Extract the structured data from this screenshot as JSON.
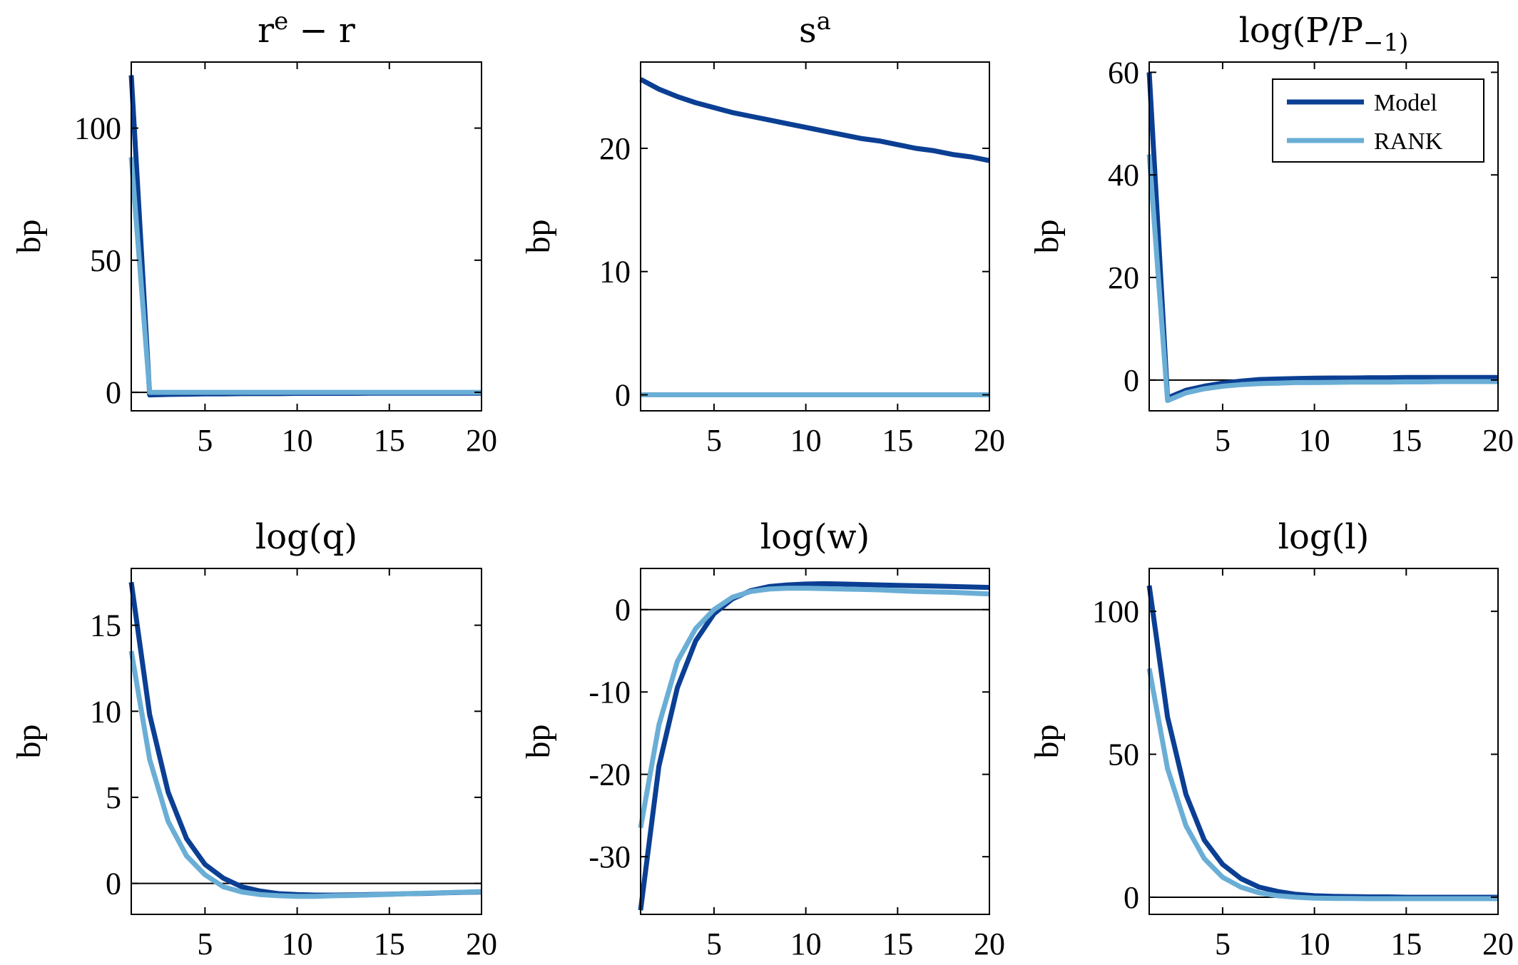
{
  "colors": {
    "model": "#0b3f93",
    "rank": "#6aaed6",
    "axis": "#000000",
    "zero": "#000000"
  },
  "legend": {
    "placement": "top-right-of-third-panel",
    "entries": [
      "Model",
      "RANK"
    ]
  },
  "chart_data": [
    {
      "type": "line",
      "title": "r^e − r",
      "ylabel": "bp",
      "xlim": [
        1,
        20
      ],
      "ylim": [
        -7,
        125
      ],
      "xticks": [
        5,
        10,
        15,
        20
      ],
      "yticks": [
        0,
        50,
        100
      ],
      "x": [
        1,
        2,
        3,
        4,
        5,
        6,
        7,
        8,
        9,
        10,
        11,
        12,
        13,
        14,
        15,
        16,
        17,
        18,
        19,
        20
      ],
      "series": [
        {
          "name": "Model",
          "values": [
            120,
            -1,
            -0.8,
            -0.7,
            -0.6,
            -0.6,
            -0.5,
            -0.5,
            -0.5,
            -0.4,
            -0.4,
            -0.4,
            -0.4,
            -0.3,
            -0.3,
            -0.3,
            -0.3,
            -0.3,
            -0.3,
            -0.3
          ]
        },
        {
          "name": "RANK",
          "values": [
            89,
            0,
            0,
            0,
            0,
            0,
            0,
            0,
            0,
            0,
            0,
            0,
            0,
            0,
            0,
            0,
            0,
            0,
            0,
            0
          ]
        }
      ]
    },
    {
      "type": "line",
      "title": "s^a",
      "ylabel": "bp",
      "xlim": [
        1,
        20
      ],
      "ylim": [
        -1.3,
        27
      ],
      "xticks": [
        5,
        10,
        15,
        20
      ],
      "yticks": [
        0,
        10,
        20
      ],
      "x": [
        1,
        2,
        3,
        4,
        5,
        6,
        7,
        8,
        9,
        10,
        11,
        12,
        13,
        14,
        15,
        16,
        17,
        18,
        19,
        20
      ],
      "series": [
        {
          "name": "Model",
          "values": [
            25.6,
            24.8,
            24.2,
            23.7,
            23.3,
            22.9,
            22.6,
            22.3,
            22.0,
            21.7,
            21.4,
            21.1,
            20.8,
            20.6,
            20.3,
            20.0,
            19.8,
            19.5,
            19.3,
            19.0
          ]
        },
        {
          "name": "RANK",
          "values": [
            0,
            0,
            0,
            0,
            0,
            0,
            0,
            0,
            0,
            0,
            0,
            0,
            0,
            0,
            0,
            0,
            0,
            0,
            0,
            0
          ]
        }
      ]
    },
    {
      "type": "line",
      "title": "log(P/P_−1)",
      "ylabel": "bp",
      "xlim": [
        1,
        20
      ],
      "ylim": [
        -6,
        62
      ],
      "xticks": [
        5,
        10,
        15,
        20
      ],
      "yticks": [
        0,
        20,
        40,
        60
      ],
      "x": [
        1,
        2,
        3,
        4,
        5,
        6,
        7,
        8,
        9,
        10,
        11,
        12,
        13,
        14,
        15,
        16,
        17,
        18,
        19,
        20
      ],
      "series": [
        {
          "name": "Model",
          "values": [
            60,
            -3.5,
            -2,
            -1.2,
            -0.6,
            -0.2,
            0.1,
            0.2,
            0.3,
            0.35,
            0.4,
            0.4,
            0.45,
            0.45,
            0.5,
            0.5,
            0.5,
            0.5,
            0.5,
            0.5
          ]
        },
        {
          "name": "RANK",
          "values": [
            44,
            -4,
            -2.5,
            -1.7,
            -1.2,
            -0.9,
            -0.7,
            -0.6,
            -0.5,
            -0.5,
            -0.45,
            -0.4,
            -0.4,
            -0.4,
            -0.35,
            -0.35,
            -0.3,
            -0.3,
            -0.3,
            -0.3
          ]
        }
      ]
    },
    {
      "type": "line",
      "title": "log(q)",
      "ylabel": "bp",
      "xlim": [
        1,
        20
      ],
      "ylim": [
        -1.8,
        18.3
      ],
      "xticks": [
        5,
        10,
        15,
        20
      ],
      "yticks": [
        0,
        5,
        10,
        15
      ],
      "x": [
        1,
        2,
        3,
        4,
        5,
        6,
        7,
        8,
        9,
        10,
        11,
        12,
        13,
        14,
        15,
        16,
        17,
        18,
        19,
        20
      ],
      "series": [
        {
          "name": "Model",
          "values": [
            17.5,
            9.8,
            5.3,
            2.6,
            1.1,
            0.3,
            -0.2,
            -0.45,
            -0.6,
            -0.65,
            -0.68,
            -0.68,
            -0.67,
            -0.65,
            -0.63,
            -0.6,
            -0.58,
            -0.55,
            -0.52,
            -0.5
          ]
        },
        {
          "name": "RANK",
          "values": [
            13.5,
            7.2,
            3.6,
            1.6,
            0.5,
            -0.2,
            -0.5,
            -0.65,
            -0.72,
            -0.75,
            -0.75,
            -0.72,
            -0.7,
            -0.67,
            -0.64,
            -0.6,
            -0.57,
            -0.54,
            -0.51,
            -0.48
          ]
        }
      ]
    },
    {
      "type": "line",
      "title": "log(w)",
      "ylabel": "bp",
      "xlim": [
        1,
        20
      ],
      "ylim": [
        -37,
        5
      ],
      "xticks": [
        5,
        10,
        15,
        20
      ],
      "yticks": [
        -30,
        -20,
        -10,
        0
      ],
      "yticklabels": [
        "-30",
        "-20",
        "-10",
        "0"
      ],
      "x": [
        1,
        2,
        3,
        4,
        5,
        6,
        7,
        8,
        9,
        10,
        11,
        12,
        13,
        14,
        15,
        16,
        17,
        18,
        19,
        20
      ],
      "series": [
        {
          "name": "Model",
          "values": [
            -36.5,
            -19,
            -9.5,
            -3.8,
            -0.5,
            1.3,
            2.3,
            2.8,
            3.0,
            3.1,
            3.15,
            3.1,
            3.05,
            3.0,
            2.95,
            2.9,
            2.85,
            2.8,
            2.75,
            2.7
          ]
        },
        {
          "name": "RANK",
          "values": [
            -26.5,
            -14,
            -6.3,
            -2.3,
            0,
            1.5,
            2.2,
            2.5,
            2.6,
            2.6,
            2.55,
            2.5,
            2.45,
            2.4,
            2.3,
            2.2,
            2.15,
            2.1,
            2.0,
            1.9
          ]
        }
      ]
    },
    {
      "type": "line",
      "title": "log(l)",
      "ylabel": "bp",
      "xlim": [
        1,
        20
      ],
      "ylim": [
        -6,
        115
      ],
      "xticks": [
        5,
        10,
        15,
        20
      ],
      "yticks": [
        0,
        50,
        100
      ],
      "x": [
        1,
        2,
        3,
        4,
        5,
        6,
        7,
        8,
        9,
        10,
        11,
        12,
        13,
        14,
        15,
        16,
        17,
        18,
        19,
        20
      ],
      "series": [
        {
          "name": "Model",
          "values": [
            109,
            63,
            36,
            20,
            11.5,
            6.5,
            3.5,
            2,
            1,
            0.5,
            0.3,
            0.2,
            0.1,
            0.1,
            0,
            0,
            0,
            0,
            0,
            0
          ]
        },
        {
          "name": "RANK",
          "values": [
            80,
            45,
            25,
            13.5,
            7,
            3.5,
            1.5,
            0.5,
            0,
            -0.3,
            -0.4,
            -0.45,
            -0.5,
            -0.5,
            -0.5,
            -0.5,
            -0.5,
            -0.5,
            -0.5,
            -0.5
          ]
        }
      ]
    }
  ]
}
